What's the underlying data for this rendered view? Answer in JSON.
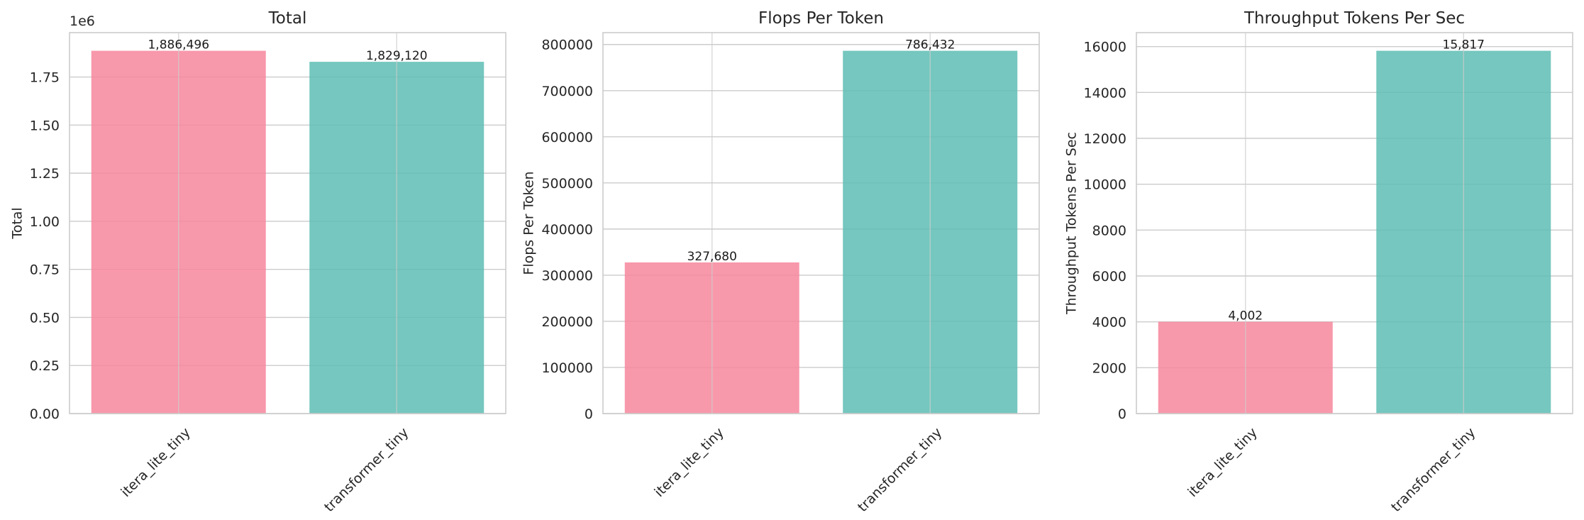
{
  "chart_data": [
    {
      "type": "bar",
      "title": "Total",
      "xlabel": "",
      "ylabel": "Total",
      "categories": [
        "itera_lite_tiny",
        "transformer_tiny"
      ],
      "values": [
        1886496,
        1829120
      ],
      "value_labels": [
        "1,886,496",
        "1,829,120"
      ],
      "bar_colors": [
        "#f7869c",
        "#5dbdb4"
      ],
      "ylim": [
        0,
        1980820
      ],
      "yticks": [
        0,
        250000,
        500000,
        750000,
        1000000,
        1250000,
        1500000,
        1750000
      ],
      "ytick_labels": [
        "0.00",
        "0.25",
        "0.50",
        "0.75",
        "1.00",
        "1.25",
        "1.50",
        "1.75"
      ],
      "y_offset_label": "1e6",
      "grid": true,
      "legend": "none"
    },
    {
      "type": "bar",
      "title": "Flops Per Token",
      "xlabel": "",
      "ylabel": "Flops Per Token",
      "categories": [
        "itera_lite_tiny",
        "transformer_tiny"
      ],
      "values": [
        327680,
        786432
      ],
      "value_labels": [
        "327,680",
        "786,432"
      ],
      "bar_colors": [
        "#f7869c",
        "#5dbdb4"
      ],
      "ylim": [
        0,
        825754
      ],
      "yticks": [
        0,
        100000,
        200000,
        300000,
        400000,
        500000,
        600000,
        700000,
        800000
      ],
      "ytick_labels": [
        "0",
        "100000",
        "200000",
        "300000",
        "400000",
        "500000",
        "600000",
        "700000",
        "800000"
      ],
      "grid": true,
      "legend": "none"
    },
    {
      "type": "bar",
      "title": "Throughput Tokens Per Sec",
      "xlabel": "",
      "ylabel": "Throughput Tokens Per Sec",
      "categories": [
        "itera_lite_tiny",
        "transformer_tiny"
      ],
      "values": [
        4002,
        15817
      ],
      "value_labels": [
        "4,002",
        "15,817"
      ],
      "bar_colors": [
        "#f7869c",
        "#5dbdb4"
      ],
      "ylim": [
        0,
        16608
      ],
      "yticks": [
        0,
        2000,
        4000,
        6000,
        8000,
        10000,
        12000,
        14000,
        16000
      ],
      "ytick_labels": [
        "0",
        "2000",
        "4000",
        "6000",
        "8000",
        "10000",
        "12000",
        "14000",
        "16000"
      ],
      "grid": true,
      "legend": "none"
    }
  ]
}
